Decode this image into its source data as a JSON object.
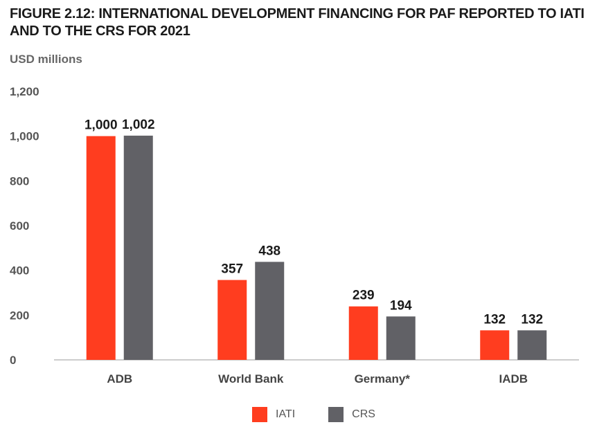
{
  "figure": {
    "title": "FIGURE 2.12: INTERNATIONAL DEVELOPMENT FINANCING FOR PAF REPORTED TO IATI AND TO THE CRS FOR 2021",
    "units": "USD millions"
  },
  "chart_data": {
    "type": "bar",
    "title": "FIGURE 2.12: INTERNATIONAL DEVELOPMENT FINANCING FOR PAF REPORTED TO IATI AND TO THE CRS FOR 2021",
    "ylabel": "USD millions",
    "categories": [
      "ADB",
      "World Bank",
      "Germany*",
      "IADB"
    ],
    "series": [
      {
        "name": "IATI",
        "color": "#ff3d1f",
        "values": [
          1000,
          357,
          239,
          132
        ],
        "labels": [
          "1,000",
          "357",
          "239",
          "132"
        ]
      },
      {
        "name": "CRS",
        "color": "#616166",
        "values": [
          1002,
          438,
          194,
          132
        ],
        "labels": [
          "1,002",
          "438",
          "194",
          "132"
        ]
      }
    ],
    "ylim": [
      0,
      1200
    ],
    "yticks": [
      0,
      200,
      400,
      600,
      800,
      1000,
      1200
    ],
    "ytick_labels": [
      "0",
      "200",
      "400",
      "600",
      "800",
      "1,000",
      "1,200"
    ],
    "grid": false,
    "legend_position": "bottom-center"
  }
}
